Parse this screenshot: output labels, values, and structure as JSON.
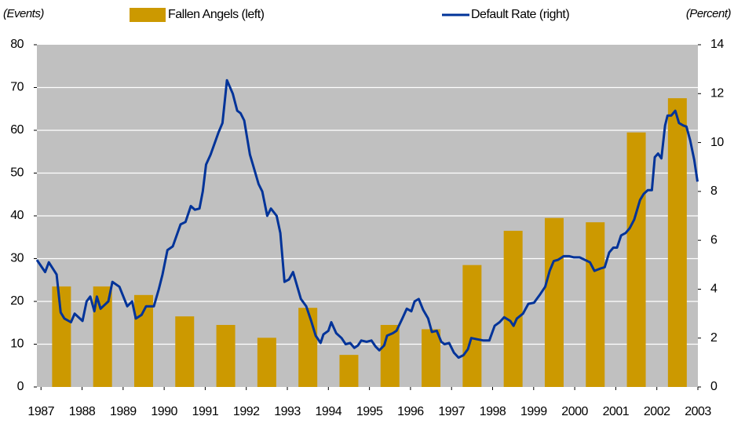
{
  "chart_data": {
    "type": "bar",
    "y_label": "(Events)",
    "y2_label": "(Percent)",
    "xlim": [
      1986.9,
      2003.0
    ],
    "xticks": [
      1987,
      1988,
      1989,
      1990,
      1991,
      1992,
      1993,
      1994,
      1995,
      1996,
      1997,
      1998,
      1999,
      2000,
      2001,
      2002,
      2003
    ],
    "ylim": [
      0,
      80
    ],
    "yticks": [
      0,
      10,
      20,
      30,
      40,
      50,
      60,
      70,
      80
    ],
    "y2lim": [
      0,
      14
    ],
    "y2ticks": [
      0,
      2,
      4,
      6,
      8,
      10,
      12,
      14
    ],
    "grid": true,
    "series": [
      {
        "name": "Fallen Angels (left)",
        "type": "bar",
        "color": "#cc9900",
        "x": [
          1987.5,
          1988.5,
          1989.5,
          1990.5,
          1991.5,
          1992.5,
          1993.5,
          1994.5,
          1995.5,
          1996.5,
          1997.5,
          1998.5,
          1999.5,
          2000.5,
          2001.5,
          2002.5
        ],
        "values": [
          23.5,
          23.5,
          21.5,
          16.5,
          14.5,
          11.5,
          18.5,
          7.5,
          14.5,
          13.5,
          28.5,
          36.5,
          39.5,
          38.5,
          59.5,
          67.5
        ]
      },
      {
        "name": "Default Rate (right)",
        "type": "line",
        "axis": "y2",
        "color": "#003399",
        "x": [
          1986.9,
          1987.1,
          1987.19,
          1987.38,
          1987.48,
          1987.57,
          1987.73,
          1987.82,
          1988.01,
          1988.11,
          1988.2,
          1988.3,
          1988.36,
          1988.45,
          1988.64,
          1988.74,
          1988.91,
          1989.1,
          1989.22,
          1989.31,
          1989.45,
          1989.56,
          1989.75,
          1989.87,
          1989.96,
          1990.08,
          1990.21,
          1990.4,
          1990.52,
          1990.65,
          1990.75,
          1990.86,
          1990.94,
          1991.02,
          1991.13,
          1991.32,
          1991.42,
          1991.53,
          1991.67,
          1991.78,
          1991.86,
          1991.95,
          1992.09,
          1992.16,
          1992.3,
          1992.39,
          1992.51,
          1992.6,
          1992.74,
          1992.83,
          1992.93,
          1993.04,
          1993.14,
          1993.33,
          1993.46,
          1993.58,
          1993.69,
          1993.81,
          1993.88,
          1994.0,
          1994.07,
          1994.19,
          1994.32,
          1994.42,
          1994.53,
          1994.63,
          1994.72,
          1994.8,
          1994.93,
          1995.05,
          1995.15,
          1995.24,
          1995.36,
          1995.43,
          1995.57,
          1995.66,
          1995.8,
          1995.91,
          1996.02,
          1996.1,
          1996.2,
          1996.31,
          1996.43,
          1996.52,
          1996.64,
          1996.75,
          1996.83,
          1996.94,
          1997.06,
          1997.17,
          1997.29,
          1997.4,
          1997.48,
          1997.63,
          1997.78,
          1997.92,
          1998.05,
          1998.17,
          1998.28,
          1998.43,
          1998.51,
          1998.59,
          1998.74,
          1998.87,
          1999.01,
          1999.16,
          1999.28,
          1999.39,
          1999.49,
          1999.59,
          1999.73,
          1999.87,
          1999.98,
          2000.12,
          2000.25,
          2000.37,
          2000.48,
          2000.63,
          2000.73,
          2000.84,
          2000.94,
          2001.03,
          2001.13,
          2001.24,
          2001.34,
          2001.45,
          2001.59,
          2001.68,
          2001.78,
          2001.88,
          2001.95,
          2002.03,
          2002.11,
          2002.2,
          2002.26,
          2002.35,
          2002.45,
          2002.54,
          2002.64,
          2002.72,
          2002.81,
          2002.91,
          2002.99
        ],
        "values": [
          5.2,
          4.7,
          5.1,
          4.6,
          3.05,
          2.8,
          2.65,
          3.0,
          2.7,
          3.5,
          3.7,
          3.1,
          3.7,
          3.2,
          3.5,
          4.3,
          4.1,
          3.3,
          3.5,
          2.8,
          2.95,
          3.3,
          3.3,
          4.0,
          4.6,
          5.6,
          5.75,
          6.65,
          6.75,
          7.4,
          7.25,
          7.3,
          8.0,
          9.1,
          9.5,
          10.4,
          10.8,
          12.55,
          12.0,
          11.3,
          11.2,
          10.9,
          9.5,
          9.1,
          8.3,
          8.0,
          7.0,
          7.3,
          7.0,
          6.3,
          4.3,
          4.4,
          4.7,
          3.6,
          3.3,
          2.7,
          2.1,
          1.8,
          2.15,
          2.3,
          2.65,
          2.2,
          2.0,
          1.75,
          1.8,
          1.6,
          1.7,
          1.9,
          1.85,
          1.9,
          1.65,
          1.5,
          1.7,
          2.1,
          2.2,
          2.3,
          2.8,
          3.2,
          3.1,
          3.5,
          3.6,
          3.15,
          2.8,
          2.25,
          2.3,
          1.85,
          1.75,
          1.8,
          1.4,
          1.2,
          1.3,
          1.55,
          2.0,
          1.95,
          1.9,
          1.9,
          2.5,
          2.65,
          2.85,
          2.7,
          2.5,
          2.8,
          3.0,
          3.4,
          3.45,
          3.8,
          4.1,
          4.75,
          5.15,
          5.2,
          5.35,
          5.35,
          5.3,
          5.3,
          5.2,
          5.1,
          4.75,
          4.85,
          4.9,
          5.5,
          5.7,
          5.7,
          6.2,
          6.3,
          6.5,
          6.85,
          7.65,
          7.9,
          8.05,
          8.05,
          9.4,
          9.55,
          9.35,
          10.7,
          11.1,
          11.1,
          11.3,
          10.8,
          10.7,
          10.65,
          10.1,
          9.3,
          8.4
        ]
      }
    ]
  }
}
